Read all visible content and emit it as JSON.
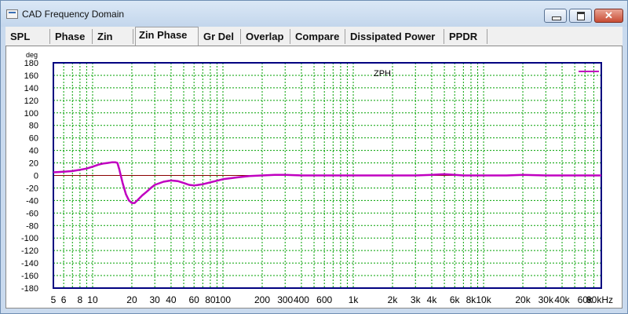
{
  "window": {
    "title": "CAD Frequency Domain",
    "close_glyph": "✕"
  },
  "tabs": [
    {
      "label": "SPL"
    },
    {
      "label": "Phase"
    },
    {
      "label": "Zin"
    },
    {
      "label": "Zin Phase",
      "active": true
    },
    {
      "label": "Gr Del"
    },
    {
      "label": "Overlap"
    },
    {
      "label": "Compare"
    },
    {
      "label": "Dissipated Power"
    },
    {
      "label": "PPDR"
    }
  ],
  "chart_data": {
    "type": "line",
    "ylabel": "deg",
    "x_scale": "log",
    "xlim": [
      5,
      80000
    ],
    "ylim": [
      -180,
      180
    ],
    "y_ticks": [
      180,
      160,
      140,
      120,
      100,
      80,
      60,
      40,
      20,
      0,
      -20,
      -40,
      -60,
      -80,
      -100,
      -120,
      -140,
      -160,
      -180
    ],
    "x_tick_labels": [
      {
        "x": 5,
        "label": "5"
      },
      {
        "x": 6,
        "label": "6"
      },
      {
        "x": 8,
        "label": "8"
      },
      {
        "x": 10,
        "label": "10"
      },
      {
        "x": 20,
        "label": "20"
      },
      {
        "x": 30,
        "label": "30"
      },
      {
        "x": 40,
        "label": "40"
      },
      {
        "x": 60,
        "label": "60"
      },
      {
        "x": 80,
        "label": "80"
      },
      {
        "x": 100,
        "label": "100"
      },
      {
        "x": 200,
        "label": "200"
      },
      {
        "x": 300,
        "label": "300"
      },
      {
        "x": 400,
        "label": "400"
      },
      {
        "x": 600,
        "label": "600"
      },
      {
        "x": 1000,
        "label": "1k"
      },
      {
        "x": 2000,
        "label": "2k"
      },
      {
        "x": 3000,
        "label": "3k"
      },
      {
        "x": 4000,
        "label": "4k"
      },
      {
        "x": 6000,
        "label": "6k"
      },
      {
        "x": 8000,
        "label": "8k"
      },
      {
        "x": 10000,
        "label": "10k"
      },
      {
        "x": 20000,
        "label": "20k"
      },
      {
        "x": 30000,
        "label": "30k"
      },
      {
        "x": 40000,
        "label": "40k"
      },
      {
        "x": 60000,
        "label": "60k"
      },
      {
        "x": 80000,
        "label": "80kHz"
      }
    ],
    "grid": true,
    "legend_position": "top-right",
    "annotation": "ZPH",
    "colors": {
      "series": "#c000c0",
      "grid": "#00a000",
      "zero_line": "#8b0000",
      "border": "#000080"
    },
    "series": [
      {
        "name": "",
        "x": [
          5,
          6,
          7,
          8,
          9,
          10,
          11,
          12,
          13,
          14,
          15,
          15.5,
          16,
          17,
          18,
          19,
          20,
          21,
          22,
          24,
          26,
          28,
          30,
          35,
          40,
          45,
          50,
          55,
          60,
          70,
          80,
          100,
          130,
          160,
          200,
          250,
          300,
          400,
          600,
          1000,
          2000,
          3000,
          4000,
          5000,
          6000,
          7000,
          10000,
          15000,
          20000,
          30000,
          50000,
          80000
        ],
        "y": [
          5,
          6,
          7,
          9,
          11,
          14,
          17,
          19,
          20,
          21,
          21,
          20,
          10,
          -12,
          -30,
          -40,
          -44,
          -44,
          -40,
          -32,
          -26,
          -20,
          -15,
          -10,
          -8,
          -9,
          -12,
          -15,
          -16,
          -14,
          -11,
          -6,
          -3,
          -1,
          0,
          1,
          1,
          0,
          0,
          0,
          0,
          0,
          1,
          2,
          1,
          0,
          0,
          0,
          1,
          0,
          0,
          0
        ]
      }
    ]
  }
}
